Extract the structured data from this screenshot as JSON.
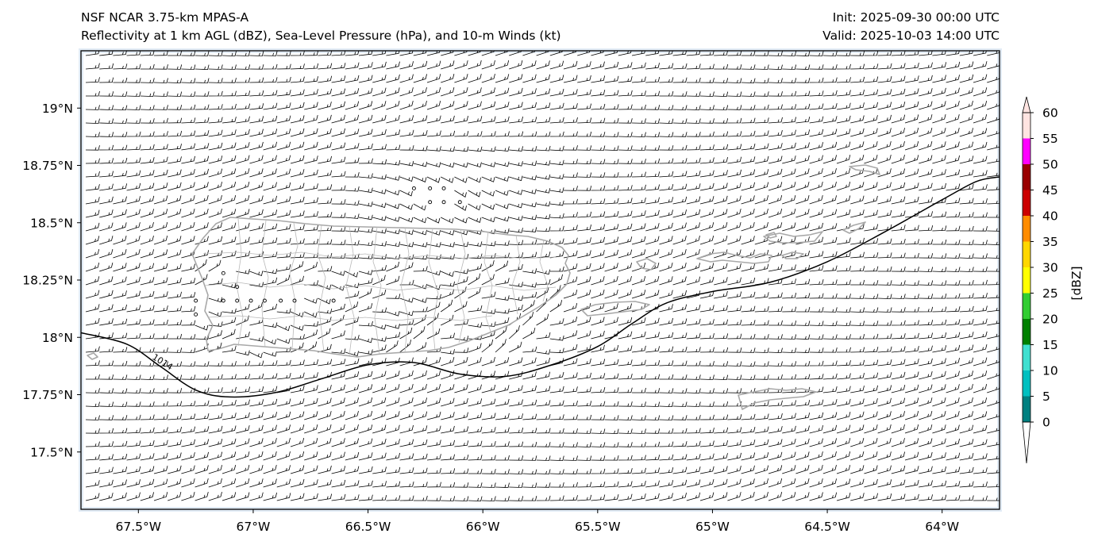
{
  "title": {
    "model": "NSF NCAR 3.75-km MPAS-A",
    "fields": "Reflectivity at 1 km AGL (dBZ), Sea-Level Pressure (hPa), and 10-m Winds (kt)",
    "init": "Init: 2025-09-30 00:00 UTC",
    "valid": "Valid: 2025-10-03 14:00 UTC"
  },
  "map": {
    "region": "Puerto Rico and Virgin Islands",
    "lon_range": [
      -67.75,
      -63.75
    ],
    "lat_range": [
      17.25,
      19.25
    ],
    "lat_ticks": [
      {
        "value": 19.0,
        "label": "19°N"
      },
      {
        "value": 18.75,
        "label": "18.75°N"
      },
      {
        "value": 18.5,
        "label": "18.5°N"
      },
      {
        "value": 18.25,
        "label": "18.25°N"
      },
      {
        "value": 18.0,
        "label": "18°N"
      },
      {
        "value": 17.75,
        "label": "17.75°N"
      },
      {
        "value": 17.5,
        "label": "17.5°N"
      }
    ],
    "lon_ticks": [
      {
        "value": -67.5,
        "label": "67.5°W"
      },
      {
        "value": -67.0,
        "label": "67°W"
      },
      {
        "value": -66.5,
        "label": "66.5°W"
      },
      {
        "value": -66.0,
        "label": "66°W"
      },
      {
        "value": -65.5,
        "label": "65.5°W"
      },
      {
        "value": -65.0,
        "label": "65°W"
      },
      {
        "value": -64.5,
        "label": "64.5°W"
      },
      {
        "value": -64.0,
        "label": "64°W"
      }
    ],
    "isobar_label": "1014",
    "isobar_1014": [
      [
        -67.75,
        18.02
      ],
      [
        -67.55,
        17.97
      ],
      [
        -67.4,
        17.87
      ],
      [
        -67.25,
        17.77
      ],
      [
        -67.1,
        17.74
      ],
      [
        -66.9,
        17.76
      ],
      [
        -66.7,
        17.82
      ],
      [
        -66.5,
        17.88
      ],
      [
        -66.3,
        17.89
      ],
      [
        -66.1,
        17.84
      ],
      [
        -65.9,
        17.83
      ],
      [
        -65.7,
        17.88
      ],
      [
        -65.5,
        17.96
      ],
      [
        -65.35,
        18.06
      ],
      [
        -65.2,
        18.15
      ],
      [
        -65.0,
        18.2
      ],
      [
        -64.75,
        18.24
      ],
      [
        -64.5,
        18.33
      ],
      [
        -64.25,
        18.46
      ],
      [
        -64.0,
        18.6
      ],
      [
        -63.85,
        18.68
      ],
      [
        -63.75,
        18.7
      ]
    ],
    "calm_points": [
      [
        -66.3,
        18.65
      ],
      [
        -66.23,
        18.65
      ],
      [
        -66.17,
        18.65
      ],
      [
        -66.23,
        18.59
      ],
      [
        -66.17,
        18.59
      ],
      [
        -66.1,
        18.59
      ],
      [
        -67.13,
        18.28
      ],
      [
        -67.07,
        18.22
      ],
      [
        -67.13,
        18.16
      ],
      [
        -67.07,
        18.16
      ],
      [
        -67.01,
        18.16
      ],
      [
        -66.95,
        18.16
      ],
      [
        -66.88,
        18.16
      ],
      [
        -66.82,
        18.16
      ],
      [
        -66.65,
        18.16
      ],
      [
        -67.25,
        18.16
      ],
      [
        -67.25,
        18.1
      ]
    ]
  },
  "colorbar": {
    "label": "[dBZ]",
    "ticks": [
      "0",
      "5",
      "10",
      "15",
      "20",
      "25",
      "30",
      "35",
      "40",
      "45",
      "50",
      "55",
      "60"
    ],
    "levels": [
      {
        "from": 0,
        "to": 5,
        "color": "#008080"
      },
      {
        "from": 5,
        "to": 10,
        "color": "#00c0c0"
      },
      {
        "from": 10,
        "to": 15,
        "color": "#40e0d0"
      },
      {
        "from": 15,
        "to": 20,
        "color": "#008000"
      },
      {
        "from": 20,
        "to": 25,
        "color": "#32cd32"
      },
      {
        "from": 25,
        "to": 30,
        "color": "#ffff00"
      },
      {
        "from": 30,
        "to": 35,
        "color": "#ffd700"
      },
      {
        "from": 35,
        "to": 40,
        "color": "#ff8c00"
      },
      {
        "from": 40,
        "to": 45,
        "color": "#cc0000"
      },
      {
        "from": 45,
        "to": 50,
        "color": "#990000"
      },
      {
        "from": 50,
        "to": 55,
        "color": "#ff00ff"
      },
      {
        "from": 55,
        "to": 60,
        "color": "#ffe4e1"
      }
    ],
    "under_color": "#ffffff",
    "over_color": "#ffe4e1"
  }
}
